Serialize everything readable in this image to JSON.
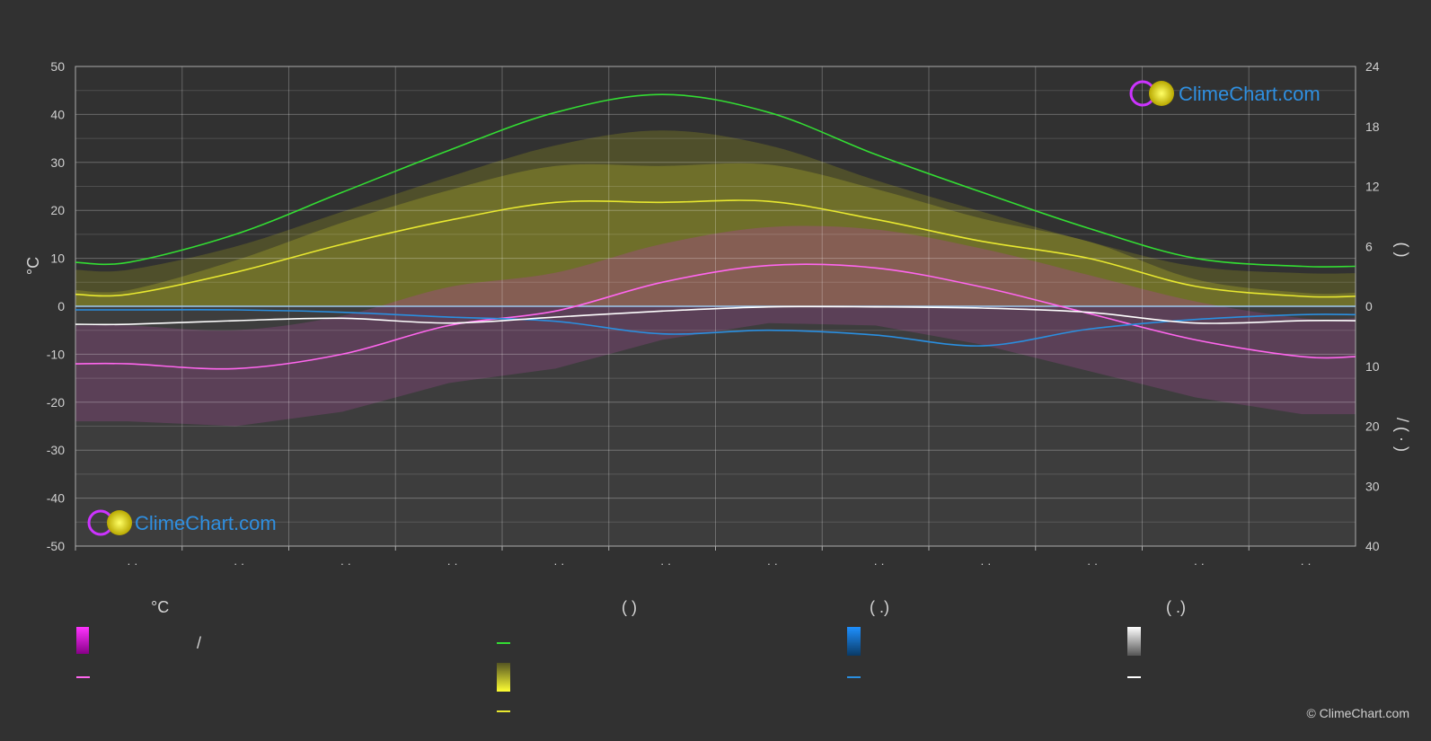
{
  "chart_data": {
    "type": "area",
    "months": [
      "· ·",
      "· ·",
      "· ·",
      "· ·",
      "· ·",
      "· ·",
      "· ·",
      "· ·",
      "· ·",
      "· ·",
      "· ·",
      "· ·"
    ],
    "x": [
      1,
      2,
      3,
      4,
      5,
      6,
      7,
      8,
      9,
      10,
      11,
      12
    ],
    "left_axis": {
      "label": "°C",
      "ylim": [
        -50,
        50
      ],
      "ticks": [
        50,
        40,
        30,
        20,
        10,
        0,
        -10,
        -20,
        -30,
        -40,
        -50
      ]
    },
    "right_axis_top": {
      "label": "(   )",
      "ylim": [
        0,
        24
      ],
      "ticks": [
        24,
        18,
        12,
        6,
        0
      ]
    },
    "right_axis_bottom": {
      "label": "/   (  ·  )",
      "ylim": [
        0,
        40
      ],
      "ticks": [
        0,
        10,
        20,
        30,
        40
      ]
    },
    "series": [
      {
        "name": "",
        "color": "#33dd33",
        "axis": "right_top",
        "values": [
          4.4,
          7.2,
          11.4,
          15.6,
          19.4,
          21.2,
          19.4,
          15.2,
          11.4,
          7.8,
          4.8,
          4.0
        ]
      },
      {
        "name": "",
        "color": "#e8e830",
        "axis": "right_top",
        "values": [
          1.2,
          3.4,
          6.2,
          8.6,
          10.4,
          10.4,
          10.5,
          8.7,
          6.5,
          4.8,
          2.0,
          1.0
        ]
      },
      {
        "name": "",
        "color": "#ff66ee",
        "axis": "left",
        "values": [
          -12,
          -13,
          -10,
          -4,
          -1,
          5,
          8.5,
          8,
          4,
          -1.5,
          -7,
          -10.5
        ]
      },
      {
        "name": "",
        "color": "#2a8fe0",
        "axis": "right_bottom",
        "values": [
          0.6,
          0.6,
          1.0,
          1.8,
          2.5,
          4.6,
          4.0,
          4.8,
          6.6,
          3.8,
          2.2,
          1.4
        ]
      },
      {
        "name": "",
        "color": "#ffffff",
        "axis": "right_bottom",
        "values": [
          3.0,
          2.4,
          2.0,
          2.8,
          1.8,
          0.8,
          0.1,
          0.1,
          0.3,
          1.0,
          2.8,
          2.4
        ]
      }
    ],
    "grid": true
  },
  "legend": {
    "col1_header": "°C",
    "col1_text": "/",
    "col2_header": "(           )",
    "col3_header": "(   .)",
    "col4_header": "(   .)"
  },
  "logo": "ClimeChart.com",
  "copyright": "© ClimeChart.com",
  "colors": {
    "background": "#313131",
    "sunshine": "#e8e830",
    "daylight": "#33dd33",
    "temperature": "#ff66ee",
    "rain": "#2a8fe0",
    "snow": "#ffffff"
  }
}
